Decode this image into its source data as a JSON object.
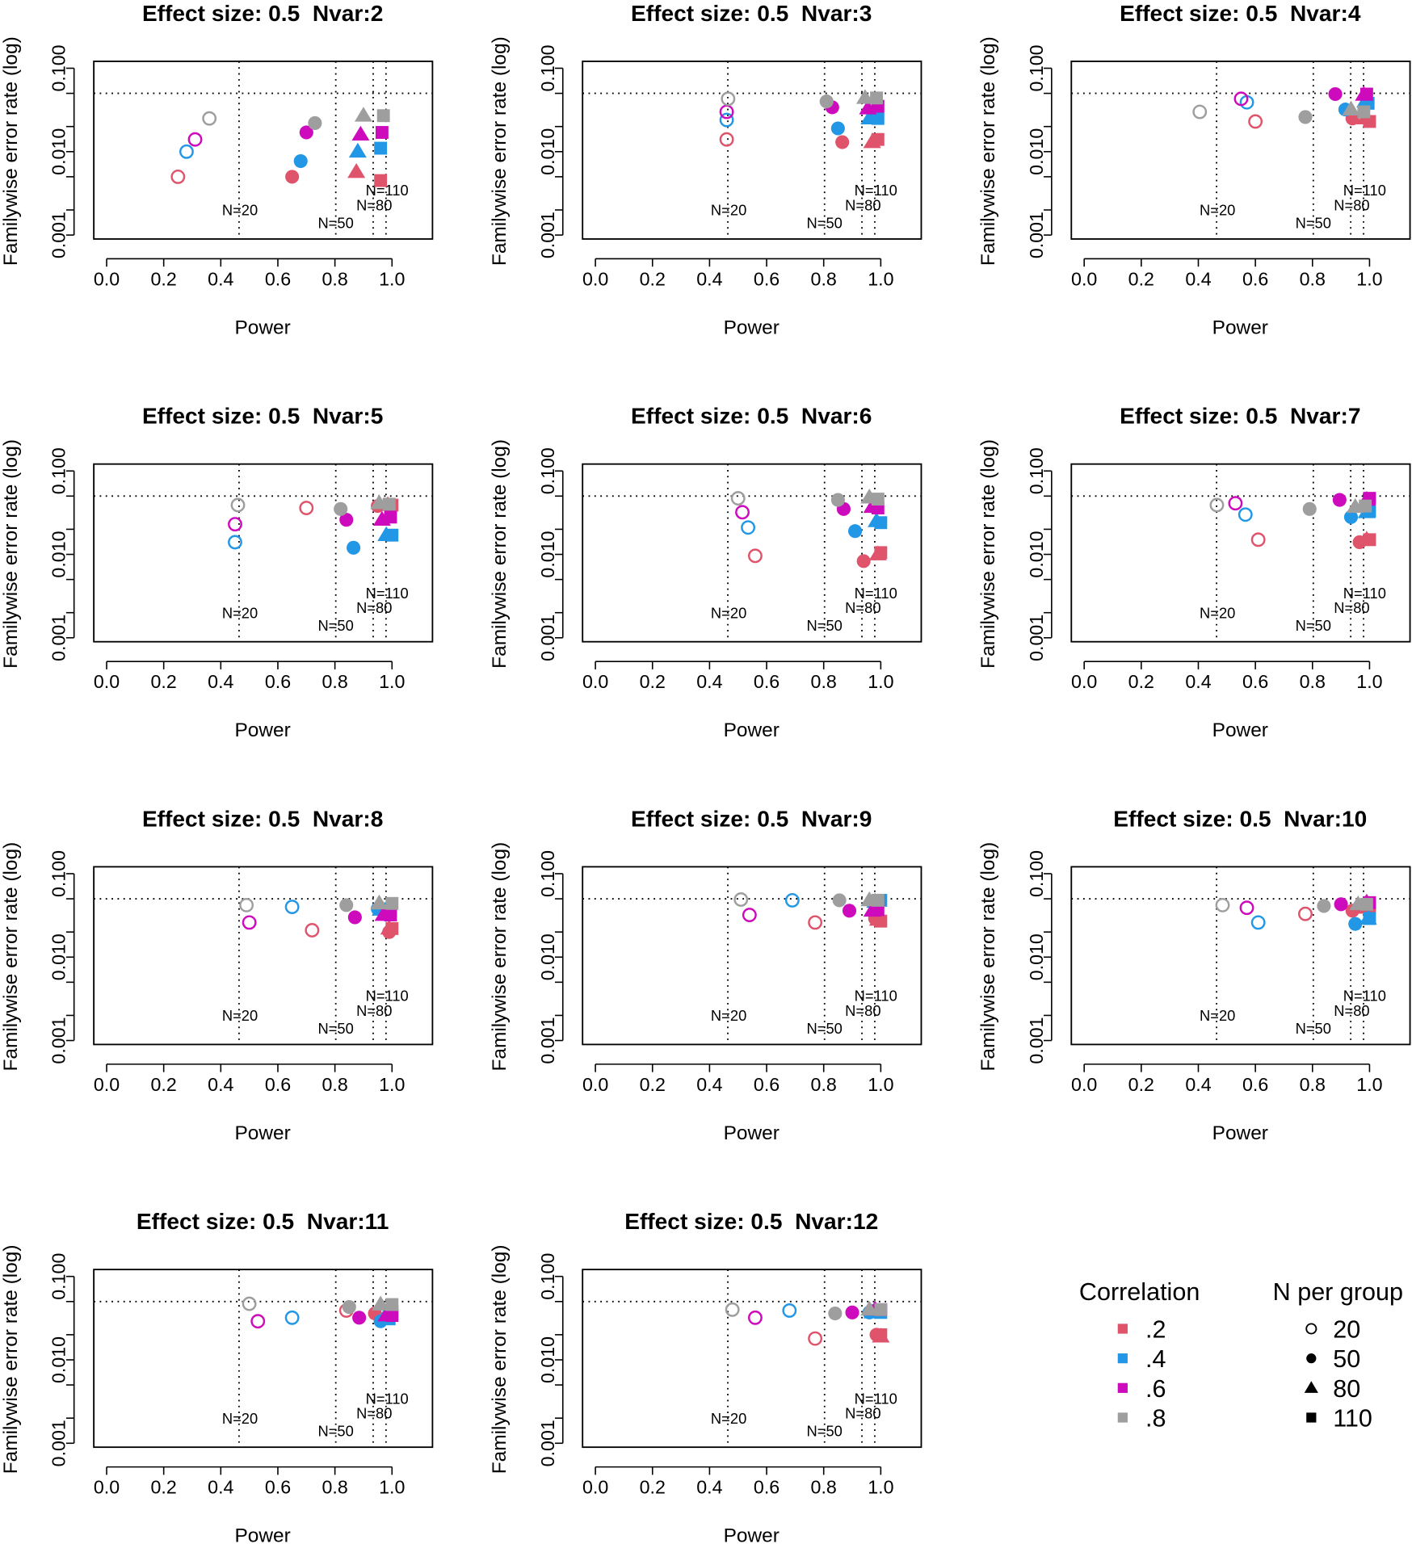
{
  "chart_data": {
    "type": "scatter",
    "xlabel": "Power",
    "ylabel": "Familywise error rate (log)",
    "xlim": [
      0,
      1
    ],
    "ylim": [
      0.001,
      0.1
    ],
    "yscale": "log",
    "x_ticks": [
      "0.0",
      "0.2",
      "0.4",
      "0.6",
      "0.8",
      "1.0"
    ],
    "y_tick_values": [
      0.001,
      0.002,
      0.005,
      0.01,
      0.02,
      0.05,
      0.1
    ],
    "y_tick_labels": {
      "0.001": "0.001",
      "0.01": "0.010",
      "0.1": "0.100"
    },
    "reference_hline": 0.05,
    "reference_vlines": [
      {
        "label": "N=20",
        "power": 0.464
      },
      {
        "label": "N=50",
        "power": 0.803
      },
      {
        "label": "N=80",
        "power": 0.934
      },
      {
        "label": "N=110",
        "power": 0.979
      }
    ],
    "grid": false,
    "colors": {
      ".2": "#DF536B",
      ".4": "#2297E6",
      ".6": "#CD0BBC",
      ".8": "#9E9E9E"
    },
    "shapes": {
      "20": "open-circle",
      "50": "filled-circle",
      "80": "triangle",
      "110": "square"
    },
    "legend": {
      "placement": "bottom-right",
      "correlation_title": "Correlation",
      "correlation_items": [
        ".2",
        ".4",
        ".6",
        ".8"
      ],
      "n_title": "N per group",
      "n_items": [
        "20",
        "50",
        "80",
        "110"
      ]
    },
    "point_order_note_keys": [
      "20",
      "50",
      "80",
      "110"
    ],
    "panels": [
      {
        "title": "Effect size: 0.5  Nvar:2",
        "data": {
          ".2": [
            [
              0.25,
              0.005
            ],
            [
              0.65,
              0.005
            ],
            [
              0.875,
              0.0057
            ],
            [
              0.96,
              0.0045
            ]
          ],
          ".4": [
            [
              0.28,
              0.01
            ],
            [
              0.68,
              0.0077
            ],
            [
              0.88,
              0.01
            ],
            [
              0.96,
              0.011
            ]
          ],
          ".6": [
            [
              0.31,
              0.014
            ],
            [
              0.7,
              0.017
            ],
            [
              0.89,
              0.016
            ],
            [
              0.965,
              0.017
            ]
          ],
          ".8": [
            [
              0.36,
              0.025
            ],
            [
              0.73,
              0.022
            ],
            [
              0.9,
              0.027
            ],
            [
              0.97,
              0.027
            ]
          ]
        }
      },
      {
        "title": "Effect size: 0.5  Nvar:3",
        "data": {
          ".2": [
            [
              0.46,
              0.014
            ],
            [
              0.865,
              0.013
            ],
            [
              0.97,
              0.013
            ],
            [
              0.99,
              0.014
            ]
          ],
          ".4": [
            [
              0.46,
              0.024
            ],
            [
              0.85,
              0.019
            ],
            [
              0.96,
              0.025
            ],
            [
              0.99,
              0.025
            ]
          ],
          ".6": [
            [
              0.46,
              0.03
            ],
            [
              0.83,
              0.034
            ],
            [
              0.955,
              0.033
            ],
            [
              0.99,
              0.035
            ]
          ],
          ".8": [
            [
              0.465,
              0.043
            ],
            [
              0.81,
              0.04
            ],
            [
              0.945,
              0.044
            ],
            [
              0.985,
              0.044
            ]
          ]
        }
      },
      {
        "title": "Effect size: 0.5  Nvar:4",
        "data": {
          ".2": [
            [
              0.6,
              0.023
            ],
            [
              0.94,
              0.025
            ],
            [
              0.985,
              0.025
            ],
            [
              1.0,
              0.023
            ]
          ],
          ".4": [
            [
              0.57,
              0.039
            ],
            [
              0.915,
              0.032
            ],
            [
              0.985,
              0.04
            ],
            [
              0.995,
              0.038
            ]
          ],
          ".6": [
            [
              0.55,
              0.043
            ],
            [
              0.88,
              0.049
            ],
            [
              0.98,
              0.048
            ],
            [
              0.99,
              0.049
            ]
          ],
          ".8": [
            [
              0.405,
              0.03
            ],
            [
              0.775,
              0.026
            ],
            [
              0.935,
              0.032
            ],
            [
              0.98,
              0.03
            ]
          ]
        }
      },
      {
        "title": "Effect size: 0.5  Nvar:5",
        "data": {
          ".2": [
            [
              0.7,
              0.036
            ],
            [
              0.95,
              0.038
            ],
            [
              0.985,
              0.039
            ],
            [
              1.0,
              0.039
            ]
          ],
          ".4": [
            [
              0.45,
              0.014
            ],
            [
              0.865,
              0.012
            ],
            [
              0.98,
              0.017
            ],
            [
              1.0,
              0.017
            ]
          ],
          ".6": [
            [
              0.45,
              0.023
            ],
            [
              0.84,
              0.026
            ],
            [
              0.965,
              0.026
            ],
            [
              0.995,
              0.028
            ]
          ],
          ".8": [
            [
              0.46,
              0.039
            ],
            [
              0.82,
              0.035
            ],
            [
              0.955,
              0.041
            ],
            [
              0.99,
              0.04
            ]
          ]
        }
      },
      {
        "title": "Effect size: 0.5  Nvar:6",
        "data": {
          ".2": [
            [
              0.56,
              0.0096
            ],
            [
              0.94,
              0.0083
            ],
            [
              0.99,
              0.01
            ],
            [
              1.0,
              0.0105
            ]
          ],
          ".4": [
            [
              0.535,
              0.021
            ],
            [
              0.91,
              0.019
            ],
            [
              0.985,
              0.025
            ],
            [
              1.0,
              0.024
            ]
          ],
          ".6": [
            [
              0.515,
              0.032
            ],
            [
              0.87,
              0.035
            ],
            [
              0.97,
              0.037
            ],
            [
              0.99,
              0.036
            ]
          ],
          ".8": [
            [
              0.5,
              0.047
            ],
            [
              0.85,
              0.045
            ],
            [
              0.96,
              0.048
            ],
            [
              0.99,
              0.046
            ]
          ]
        }
      },
      {
        "title": "Effect size: 0.5  Nvar:7",
        "data": {
          ".2": [
            [
              0.61,
              0.015
            ],
            [
              0.965,
              0.014
            ],
            [
              0.99,
              0.015
            ],
            [
              1.0,
              0.015
            ]
          ],
          ".4": [
            [
              0.565,
              0.03
            ],
            [
              0.935,
              0.028
            ],
            [
              0.99,
              0.032
            ],
            [
              1.0,
              0.033
            ]
          ],
          ".6": [
            [
              0.53,
              0.041
            ],
            [
              0.895,
              0.045
            ],
            [
              0.99,
              0.045
            ],
            [
              1.0,
              0.047
            ]
          ],
          ".8": [
            [
              0.465,
              0.039
            ],
            [
              0.79,
              0.035
            ],
            [
              0.95,
              0.037
            ],
            [
              0.985,
              0.038
            ]
          ]
        }
      },
      {
        "title": "Effect size: 0.5  Nvar:8",
        "data": {
          ".2": [
            [
              0.72,
              0.021
            ],
            [
              0.99,
              0.02
            ],
            [
              0.99,
              0.022
            ],
            [
              1.0,
              0.022
            ]
          ],
          ".4": [
            [
              0.65,
              0.04
            ],
            [
              0.95,
              0.038
            ],
            [
              0.96,
              0.037
            ],
            [
              0.995,
              0.038
            ]
          ],
          ".6": [
            [
              0.5,
              0.026
            ],
            [
              0.87,
              0.03
            ],
            [
              0.97,
              0.032
            ],
            [
              0.995,
              0.032
            ]
          ],
          ".8": [
            [
              0.49,
              0.042
            ],
            [
              0.84,
              0.042
            ],
            [
              0.955,
              0.044
            ],
            [
              1.0,
              0.044
            ]
          ]
        }
      },
      {
        "title": "Effect size: 0.5  Nvar:9",
        "data": {
          ".2": [
            [
              0.77,
              0.026
            ],
            [
              0.98,
              0.029
            ],
            [
              0.99,
              0.028
            ],
            [
              1.0,
              0.027
            ]
          ],
          ".4": [
            [
              0.69,
              0.048
            ],
            [
              0.98,
              0.046
            ],
            [
              0.98,
              0.046
            ],
            [
              1.0,
              0.048
            ]
          ],
          ".6": [
            [
              0.54,
              0.032
            ],
            [
              0.89,
              0.036
            ],
            [
              0.97,
              0.036
            ],
            [
              0.99,
              0.037
            ]
          ],
          ".8": [
            [
              0.51,
              0.049
            ],
            [
              0.855,
              0.048
            ],
            [
              0.96,
              0.048
            ],
            [
              0.99,
              0.048
            ]
          ]
        }
      },
      {
        "title": "Effect size: 0.5  Nvar:10",
        "data": {
          ".2": [
            [
              0.775,
              0.033
            ],
            [
              0.94,
              0.036
            ],
            [
              0.97,
              0.039
            ],
            [
              1.0,
              0.04
            ]
          ],
          ".4": [
            [
              0.61,
              0.026
            ],
            [
              0.95,
              0.025
            ],
            [
              0.995,
              0.029
            ],
            [
              1.0,
              0.029
            ]
          ],
          ".6": [
            [
              0.57,
              0.039
            ],
            [
              0.9,
              0.043
            ],
            [
              0.99,
              0.045
            ],
            [
              1.0,
              0.045
            ]
          ],
          ".8": [
            [
              0.485,
              0.042
            ],
            [
              0.84,
              0.041
            ],
            [
              0.96,
              0.043
            ],
            [
              0.99,
              0.043
            ]
          ]
        }
      },
      {
        "title": "Effect size: 0.5  Nvar:11",
        "data": {
          ".2": [
            [
              0.84,
              0.039
            ],
            [
              0.94,
              0.036
            ],
            [
              0.99,
              0.038
            ],
            [
              1.0,
              0.038
            ]
          ],
          ".4": [
            [
              0.65,
              0.032
            ],
            [
              0.96,
              0.029
            ],
            [
              0.97,
              0.031
            ],
            [
              0.99,
              0.031
            ]
          ],
          ".6": [
            [
              0.53,
              0.029
            ],
            [
              0.885,
              0.032
            ],
            [
              0.98,
              0.034
            ],
            [
              1.0,
              0.034
            ]
          ],
          ".8": [
            [
              0.5,
              0.047
            ],
            [
              0.85,
              0.043
            ],
            [
              0.96,
              0.046
            ],
            [
              1.0,
              0.046
            ]
          ]
        }
      },
      {
        "title": "Effect size: 0.5  Nvar:12",
        "data": {
          ".2": [
            [
              0.77,
              0.018
            ],
            [
              0.985,
              0.02
            ],
            [
              1.0,
              0.019
            ],
            [
              1.0,
              0.02
            ]
          ],
          ".4": [
            [
              0.68,
              0.039
            ],
            [
              0.96,
              0.037
            ],
            [
              0.97,
              0.037
            ],
            [
              1.0,
              0.037
            ]
          ],
          ".6": [
            [
              0.56,
              0.032
            ],
            [
              0.9,
              0.037
            ],
            [
              0.98,
              0.04
            ],
            [
              1.0,
              0.04
            ]
          ],
          ".8": [
            [
              0.48,
              0.04
            ],
            [
              0.84,
              0.036
            ],
            [
              0.96,
              0.04
            ],
            [
              1.0,
              0.04
            ]
          ]
        }
      }
    ]
  }
}
